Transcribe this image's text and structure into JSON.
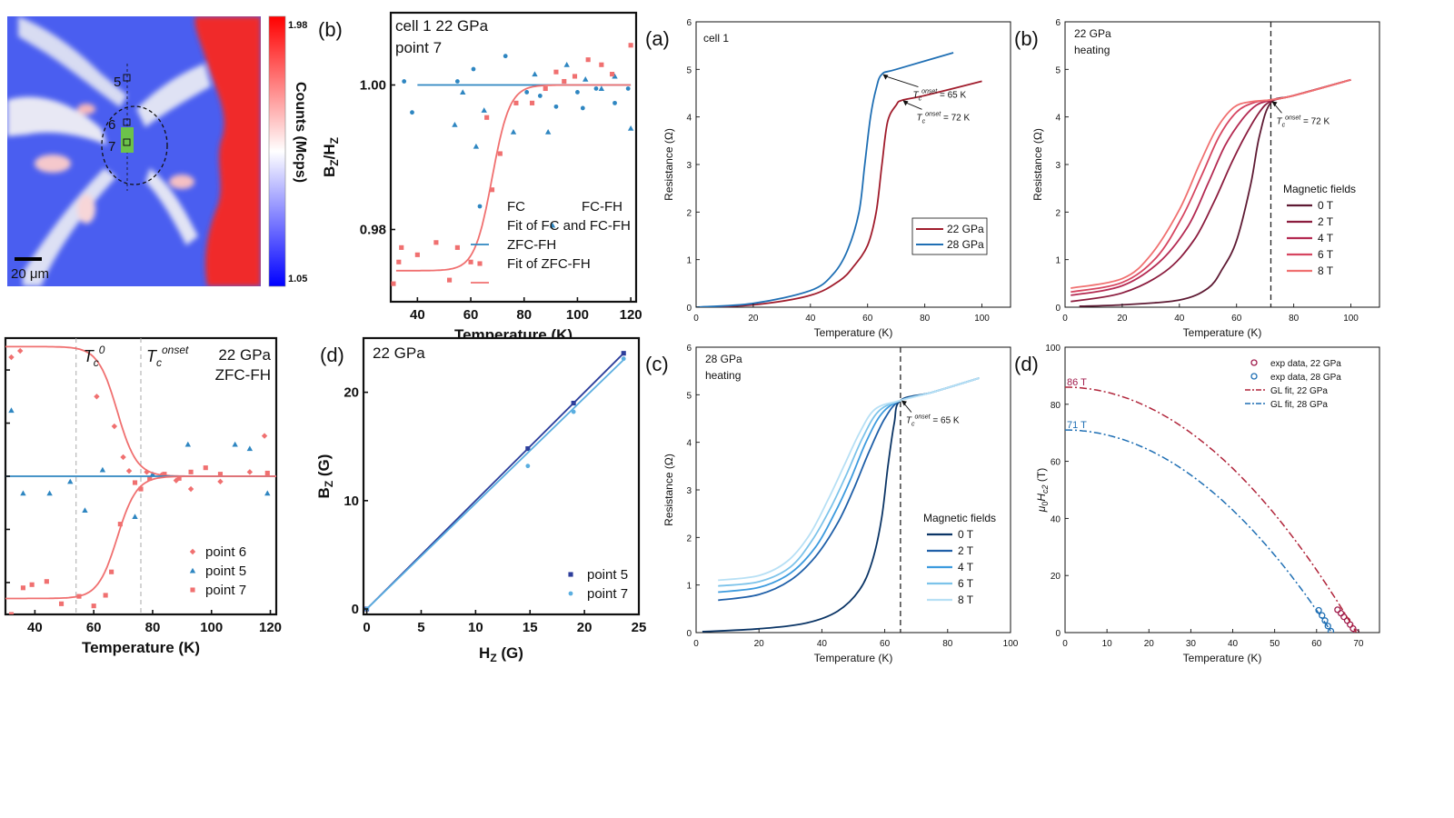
{
  "map": {
    "scale_bar": "20 μm",
    "points": [
      "5",
      "6",
      "7"
    ],
    "colorbar": {
      "max": "1.98",
      "min": "1.05",
      "label": "Counts (Mcps)",
      "colors": [
        "#0000ff",
        "#ffffff",
        "#ff0000"
      ]
    }
  },
  "chart_data": [
    {
      "id": "b-left",
      "type": "scatter",
      "panel_label": "(b)",
      "annotation_lines": [
        "cell 1 22 GPa",
        "point 7"
      ],
      "xlabel": "Temperature (K)",
      "ylabel": "B_Z/H_Z",
      "xlim": [
        30,
        122
      ],
      "ylim": [
        0.97,
        1.01
      ],
      "xticks": [
        40,
        60,
        80,
        100,
        120
      ],
      "yticks": [
        0.98,
        1.0
      ],
      "ytick_labels": [
        "0.98",
        "1.00"
      ],
      "series": [
        {
          "name": "FC",
          "marker": "circle",
          "color": "#2e86c1",
          "x": [
            35,
            38,
            55,
            61,
            73,
            81,
            86,
            92,
            100,
            102,
            107,
            114,
            119
          ],
          "y": [
            1.0005,
            0.9962,
            1.0005,
            1.0022,
            1.004,
            0.999,
            0.9985,
            0.997,
            0.999,
            0.9968,
            0.9995,
            0.9975,
            0.9995
          ]
        },
        {
          "name": "FC-FH",
          "marker": "triangle",
          "color": "#2e86c1",
          "x": [
            54,
            57,
            62,
            65,
            76,
            84,
            89,
            96,
            103,
            109,
            114,
            120
          ],
          "y": [
            0.9945,
            0.999,
            0.9915,
            0.9965,
            0.9935,
            1.0015,
            0.9935,
            1.0028,
            1.0008,
            0.9995,
            1.0012,
            0.994
          ]
        },
        {
          "name": "Fit of FC and FC-FH",
          "marker": "line",
          "color": "#2e86c1",
          "x": [
            40,
            120
          ],
          "y": [
            1.0,
            1.0
          ]
        },
        {
          "name": "ZFC-FH",
          "marker": "square",
          "color": "#f07070",
          "x": [
            31,
            33,
            34,
            40,
            47,
            52,
            55,
            60,
            66,
            68,
            71,
            77,
            83,
            88,
            92,
            95,
            99,
            104,
            109,
            113,
            120
          ],
          "y": [
            0.9725,
            0.9755,
            0.9775,
            0.9765,
            0.9782,
            0.973,
            0.9775,
            0.9755,
            0.9955,
            0.9855,
            0.9905,
            0.9975,
            0.9975,
            0.9995,
            1.0018,
            1.0005,
            1.0012,
            1.0035,
            1.0028,
            1.0015,
            1.0055
          ]
        },
        {
          "name": "Fit of ZFC-FH",
          "marker": "sigmoid",
          "color": "#f07070",
          "x": [
            32,
            120
          ],
          "y": [
            0.9743,
            1.0
          ],
          "center": 68,
          "width": 3.3
        }
      ]
    },
    {
      "id": "c-left",
      "type": "scatter",
      "panel_label": "",
      "annotation_lines": [
        "22 GPa",
        "ZFC-FH"
      ],
      "tc0_label": "0",
      "tconset_label": "onset",
      "vlines": [
        54,
        76
      ],
      "xlabel": "Temperature (K)",
      "xlim": [
        30,
        122
      ],
      "ylim": [
        -1.3,
        1.3
      ],
      "xticks": [
        40,
        60,
        80,
        100,
        120
      ],
      "series": [
        {
          "name": "point 6",
          "marker": "diamond",
          "color": "#f07070",
          "x": [
            32,
            35,
            43,
            53,
            61,
            67,
            70,
            72,
            78,
            83,
            88,
            93,
            103,
            113,
            118
          ],
          "y": [
            1.12,
            1.18,
            1.43,
            1.38,
            0.75,
            0.47,
            0.18,
            0.05,
            0.04,
            0.01,
            -0.04,
            -0.12,
            -0.05,
            0.04,
            0.38
          ]
        },
        {
          "name": "point 5",
          "marker": "triangle",
          "color": "#2e86c1",
          "x": [
            32,
            36,
            45,
            52,
            57,
            63,
            74,
            80,
            92,
            108,
            113,
            119
          ],
          "y": [
            0.62,
            -0.16,
            -0.16,
            -0.05,
            -0.32,
            0.06,
            -0.38,
            0.02,
            0.3,
            0.3,
            0.26,
            -0.16
          ]
        },
        {
          "name": "point 7",
          "marker": "square",
          "color": "#f07070",
          "x": [
            32,
            36,
            39,
            44,
            49,
            55,
            60,
            64,
            66,
            69,
            74,
            76,
            79,
            84,
            89,
            93,
            98,
            103,
            119
          ],
          "y": [
            -1.3,
            -1.05,
            -1.02,
            -0.99,
            -1.2,
            -1.13,
            -1.22,
            -1.12,
            -0.9,
            -0.45,
            -0.06,
            -0.12,
            -0.02,
            0.02,
            -0.02,
            0.04,
            0.08,
            0.02,
            0.03
          ]
        },
        {
          "name": "fit point 6",
          "marker": "sigmoid",
          "color": "#f07070",
          "x": [
            30,
            122
          ],
          "y": [
            1.22,
            0.0
          ],
          "center": 68,
          "width": 3.3
        },
        {
          "name": "fit point 5",
          "marker": "line",
          "color": "#2e86c1",
          "x": [
            30,
            122
          ],
          "y": [
            0.0,
            0.0
          ]
        },
        {
          "name": "fit point 7",
          "marker": "sigmoid",
          "color": "#f07070",
          "x": [
            30,
            122
          ],
          "y": [
            -1.15,
            0.0
          ],
          "center": 68,
          "width": 3.3
        }
      ]
    },
    {
      "id": "d-left",
      "type": "scatter",
      "panel_label": "(d)",
      "annotation_lines": [
        "22 GPa"
      ],
      "xlabel": "H_Z (G)",
      "ylabel": "B_Z (G)",
      "xlim": [
        -0.3,
        25
      ],
      "ylim": [
        -0.5,
        25
      ],
      "xticks": [
        0,
        5,
        10,
        15,
        20,
        25
      ],
      "yticks": [
        0,
        10,
        20
      ],
      "series": [
        {
          "name": "point 5",
          "marker": "square",
          "color": "#2d3e9b",
          "x": [
            0,
            14.8,
            19,
            23.6
          ],
          "y": [
            0,
            14.8,
            19,
            23.6
          ]
        },
        {
          "name": "point 7",
          "marker": "circle",
          "color": "#5aaee0",
          "x": [
            0,
            14.8,
            19,
            23.6
          ],
          "y": [
            0,
            13.2,
            18.2,
            23.1
          ]
        },
        {
          "name": "fit point 5",
          "marker": "line",
          "color": "#2d3e9b",
          "x": [
            0,
            23.6
          ],
          "y": [
            0,
            23.6
          ]
        },
        {
          "name": "fit point 7",
          "marker": "line",
          "color": "#5aaee0",
          "x": [
            0,
            23.6
          ],
          "y": [
            0,
            23.0
          ]
        }
      ]
    },
    {
      "id": "a-right",
      "type": "line",
      "panel_label": "(a)",
      "annotation_lines": [
        "cell 1"
      ],
      "xlabel": "Temperature (K)",
      "ylabel": "Resistance (Ω)",
      "xlim": [
        0,
        110
      ],
      "ylim": [
        0,
        6
      ],
      "xticks": [
        0,
        20,
        40,
        60,
        80,
        100
      ],
      "yticks": [
        0,
        1,
        2,
        3,
        4,
        5,
        6
      ],
      "arrows": [
        {
          "text": "T_c^onset = 65 K",
          "x": 65,
          "y": 4.9
        },
        {
          "text": "T_c^onset = 72 K",
          "x": 72,
          "y": 4.35
        }
      ],
      "series": [
        {
          "name": "22 GPa",
          "color": "#a01c2c",
          "x": [
            0,
            20,
            40,
            50,
            55,
            60,
            63,
            65,
            67,
            70,
            72,
            80,
            100
          ],
          "y": [
            0,
            0.05,
            0.25,
            0.55,
            0.85,
            1.3,
            2.0,
            3.0,
            3.9,
            4.25,
            4.35,
            4.45,
            4.75
          ]
        },
        {
          "name": "28 GPa",
          "color": "#1f6fb4",
          "x": [
            0,
            20,
            40,
            48,
            53,
            57,
            59,
            61,
            63,
            65,
            70,
            90
          ],
          "y": [
            0,
            0.08,
            0.35,
            0.7,
            1.2,
            2.0,
            3.0,
            4.0,
            4.6,
            4.9,
            5.0,
            5.35
          ]
        }
      ]
    },
    {
      "id": "b-right",
      "type": "line",
      "panel_label": "(b)",
      "annotation_lines": [
        "22 GPa",
        "heating"
      ],
      "legend_title": "Magnetic fields",
      "vline": 72,
      "arrow": {
        "text": "T_c^onset = 72 K",
        "x": 72,
        "y": 4.35
      },
      "xlabel": "Temperature (K)",
      "ylabel": "Resistance (Ω)",
      "xlim": [
        0,
        110
      ],
      "ylim": [
        0,
        6
      ],
      "xticks": [
        0,
        20,
        40,
        60,
        80,
        100
      ],
      "yticks": [
        0,
        1,
        2,
        3,
        4,
        5,
        6
      ],
      "series": [
        {
          "name": "0 T",
          "color": "#5e1a33",
          "x": [
            5,
            20,
            40,
            50,
            55,
            60,
            65,
            68,
            72,
            80,
            100
          ],
          "y": [
            0.02,
            0.05,
            0.15,
            0.4,
            0.8,
            1.4,
            2.6,
            3.6,
            4.3,
            4.45,
            4.78
          ]
        },
        {
          "name": "2 T",
          "color": "#8b1c3e",
          "x": [
            2,
            20,
            35,
            45,
            52,
            58,
            63,
            68,
            72,
            80,
            100
          ],
          "y": [
            0.12,
            0.3,
            0.75,
            1.4,
            2.2,
            3.0,
            3.6,
            4.1,
            4.33,
            4.45,
            4.78
          ]
        },
        {
          "name": "4 T",
          "color": "#b42a52",
          "x": [
            2,
            20,
            33,
            43,
            50,
            56,
            62,
            67,
            72,
            80,
            100
          ],
          "y": [
            0.25,
            0.45,
            0.95,
            1.7,
            2.6,
            3.4,
            3.95,
            4.25,
            4.35,
            4.45,
            4.78
          ]
        },
        {
          "name": "6 T",
          "color": "#d64560",
          "x": [
            2,
            20,
            32,
            41,
            48,
            54,
            60,
            66,
            72,
            80,
            100
          ],
          "y": [
            0.32,
            0.52,
            1.05,
            1.9,
            2.8,
            3.6,
            4.1,
            4.3,
            4.36,
            4.45,
            4.78
          ]
        },
        {
          "name": "8 T",
          "color": "#f07070",
          "x": [
            2,
            20,
            30,
            40,
            47,
            53,
            59,
            65,
            72,
            80,
            100
          ],
          "y": [
            0.4,
            0.6,
            1.1,
            2.05,
            3.0,
            3.75,
            4.2,
            4.32,
            4.36,
            4.45,
            4.78
          ]
        }
      ]
    },
    {
      "id": "c-right",
      "type": "line",
      "panel_label": "(c)",
      "annotation_lines": [
        "28 GPa",
        "heating"
      ],
      "legend_title": "Magnetic fields",
      "vline": 65,
      "arrow": {
        "text": "T_c^onset = 65 K",
        "x": 65,
        "y": 4.9
      },
      "xlabel": "Temperature (K)",
      "ylabel": "Resistance (Ω)",
      "xlim": [
        0,
        100
      ],
      "ylim": [
        0,
        6
      ],
      "xticks": [
        0,
        20,
        40,
        60,
        80,
        100
      ],
      "yticks": [
        0,
        1,
        2,
        3,
        4,
        5,
        6
      ],
      "series": [
        {
          "name": "0 T",
          "color": "#0b3566",
          "x": [
            2,
            20,
            35,
            45,
            52,
            56,
            59,
            61,
            63,
            65,
            75,
            90
          ],
          "y": [
            0.02,
            0.08,
            0.2,
            0.45,
            0.9,
            1.5,
            2.4,
            3.5,
            4.4,
            4.88,
            5.05,
            5.35
          ]
        },
        {
          "name": "2 T",
          "color": "#1f5fa8",
          "x": [
            7,
            20,
            30,
            38,
            45,
            50,
            55,
            60,
            65,
            75,
            90
          ],
          "y": [
            0.68,
            0.8,
            1.1,
            1.6,
            2.3,
            3.0,
            3.8,
            4.5,
            4.88,
            5.05,
            5.35
          ]
        },
        {
          "name": "4 T",
          "color": "#3d9bde",
          "x": [
            7,
            20,
            30,
            38,
            44,
            49,
            54,
            59,
            65,
            75,
            90
          ],
          "y": [
            0.85,
            0.95,
            1.25,
            1.8,
            2.5,
            3.2,
            4.0,
            4.6,
            4.88,
            5.05,
            5.35
          ]
        },
        {
          "name": "6 T",
          "color": "#7cc3ea",
          "x": [
            7,
            20,
            30,
            37,
            43,
            48,
            53,
            58,
            65,
            75,
            90
          ],
          "y": [
            0.98,
            1.07,
            1.38,
            1.95,
            2.65,
            3.35,
            4.1,
            4.65,
            4.88,
            5.05,
            5.35
          ]
        },
        {
          "name": "8 T",
          "color": "#b7e0f5",
          "x": [
            7,
            20,
            29,
            36,
            42,
            47,
            52,
            57,
            65,
            75,
            90
          ],
          "y": [
            1.1,
            1.2,
            1.5,
            2.05,
            2.8,
            3.5,
            4.2,
            4.7,
            4.88,
            5.05,
            5.35
          ]
        }
      ]
    },
    {
      "id": "d-right",
      "type": "line",
      "panel_label": "(d)",
      "xlabel": "Temperature (K)",
      "ylabel": "μ0Hc2 (T)",
      "xlim": [
        0,
        75
      ],
      "ylim": [
        0,
        100
      ],
      "xticks": [
        0,
        10,
        20,
        30,
        40,
        50,
        60,
        70
      ],
      "yticks": [
        0,
        20,
        40,
        60,
        80,
        100
      ],
      "value_labels": [
        {
          "text": "86 T",
          "y": 86
        },
        {
          "text": "71 T",
          "y": 71
        }
      ],
      "series": [
        {
          "name": "exp data, 22 GPa",
          "marker": "open-circle",
          "color": "#a01c4c",
          "x": [
            65,
            65.8,
            66.5,
            67.3,
            68,
            68.7,
            69.5
          ],
          "y": [
            8,
            6.8,
            5.5,
            4.2,
            2.8,
            1.4,
            0
          ]
        },
        {
          "name": "exp data, 28 GPa",
          "marker": "open-circle",
          "color": "#1f6fb4",
          "x": [
            60.5,
            61.3,
            62,
            62.7,
            63.4
          ],
          "y": [
            7.8,
            6,
            4.2,
            2.3,
            0.5
          ]
        },
        {
          "name": "GL fit, 22 GPa",
          "marker": "dashdot",
          "color": "#b0243a",
          "Hc0": 86,
          "Tc": 69.5
        },
        {
          "name": "GL fit, 28 GPa",
          "marker": "dashdot",
          "color": "#1f6fb4",
          "Hc0": 71,
          "Tc": 63.6
        }
      ]
    }
  ]
}
